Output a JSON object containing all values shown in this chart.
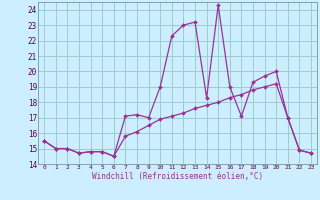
{
  "xlabel": "Windchill (Refroidissement éolien,°C)",
  "bg_color": "#cceeff",
  "grid_color": "#99cccc",
  "line_color": "#993399",
  "x_values": [
    0,
    1,
    2,
    3,
    4,
    5,
    6,
    7,
    8,
    9,
    10,
    11,
    12,
    13,
    14,
    15,
    16,
    17,
    18,
    19,
    20,
    21,
    22,
    23
  ],
  "y1_values": [
    15.5,
    15.0,
    15.0,
    14.7,
    14.8,
    14.8,
    14.5,
    17.1,
    17.2,
    17.0,
    19.0,
    22.3,
    23.0,
    23.2,
    18.3,
    24.3,
    19.0,
    17.1,
    19.3,
    19.7,
    20.0,
    17.0,
    14.9,
    14.7
  ],
  "y2_values": [
    15.5,
    15.0,
    15.0,
    14.7,
    14.8,
    14.8,
    14.5,
    15.8,
    16.1,
    16.5,
    16.9,
    17.1,
    17.3,
    17.6,
    17.8,
    18.0,
    18.3,
    18.5,
    18.8,
    19.0,
    19.2,
    17.0,
    14.9,
    14.7
  ],
  "ylim": [
    14,
    24.5
  ],
  "xlim": [
    -0.5,
    23.5
  ],
  "yticks": [
    14,
    15,
    16,
    17,
    18,
    19,
    20,
    21,
    22,
    23,
    24
  ],
  "xtick_labels": [
    "0",
    "1",
    "2",
    "3",
    "4",
    "5",
    "6",
    "7",
    "8",
    "9",
    "10",
    "11",
    "12",
    "13",
    "14",
    "15",
    "16",
    "17",
    "18",
    "19",
    "20",
    "21",
    "22",
    "23"
  ]
}
